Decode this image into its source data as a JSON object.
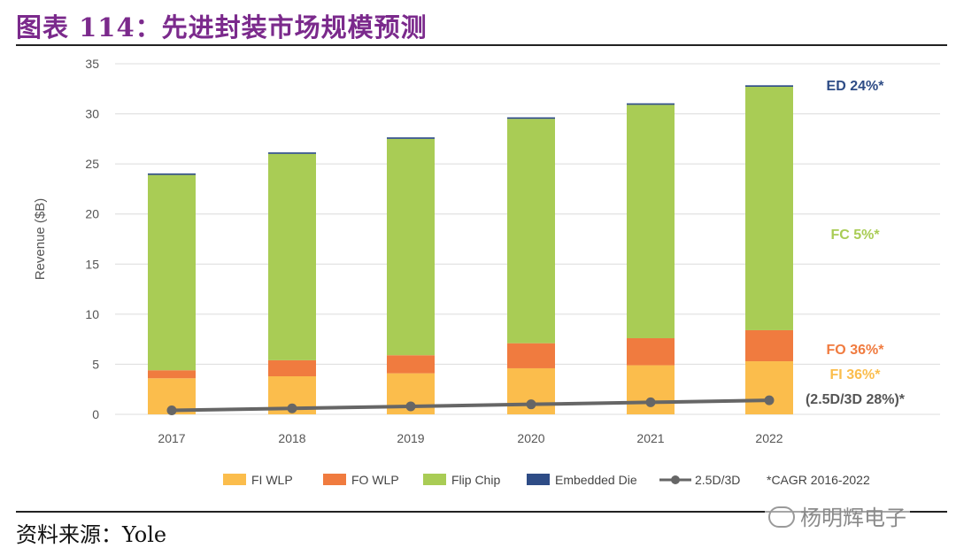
{
  "header": {
    "title": "图表 114：先进封装市场规模预测"
  },
  "footer": {
    "source": "资料来源：Yole",
    "watermark": "杨明辉电子"
  },
  "chart_data": {
    "type": "bar",
    "stacked": true,
    "categories": [
      "2017",
      "2018",
      "2019",
      "2020",
      "2021",
      "2022"
    ],
    "ylabel": "Revenue ($B)",
    "xlabel": "",
    "ylim": [
      0,
      35
    ],
    "yticks": [
      0,
      5,
      10,
      15,
      20,
      25,
      30,
      35
    ],
    "grid": true,
    "legend_position": "bottom",
    "series": [
      {
        "name": "FI WLP",
        "color": "#fbbd4c",
        "values": [
          3.6,
          3.8,
          4.1,
          4.6,
          4.9,
          5.3
        ]
      },
      {
        "name": "FO WLP",
        "color": "#f07b3f",
        "values": [
          0.8,
          1.6,
          1.8,
          2.5,
          2.7,
          3.1
        ]
      },
      {
        "name": "Flip Chip",
        "color": "#a9cc55",
        "values": [
          19.5,
          20.6,
          21.6,
          22.4,
          23.3,
          24.3
        ]
      },
      {
        "name": "Embedded Die",
        "color": "#2e4c86",
        "values": [
          0.15,
          0.15,
          0.15,
          0.15,
          0.15,
          0.15
        ]
      }
    ],
    "line": {
      "name": "2.5D/3D",
      "color": "#666666",
      "values": [
        0.4,
        0.6,
        0.8,
        1.0,
        1.2,
        1.4
      ]
    },
    "legend_note": "*CAGR 2016-2022",
    "annotations": [
      {
        "text": "ED 24%*",
        "color": "#2e4c86"
      },
      {
        "text": "FC 5%*",
        "color": "#a9cc55"
      },
      {
        "text": "FO 36%*",
        "color": "#f07b3f"
      },
      {
        "text": "FI 36%*",
        "color": "#fbbd4c"
      },
      {
        "text": "(2.5D/3D 28%)*",
        "color": "#555555"
      }
    ]
  }
}
